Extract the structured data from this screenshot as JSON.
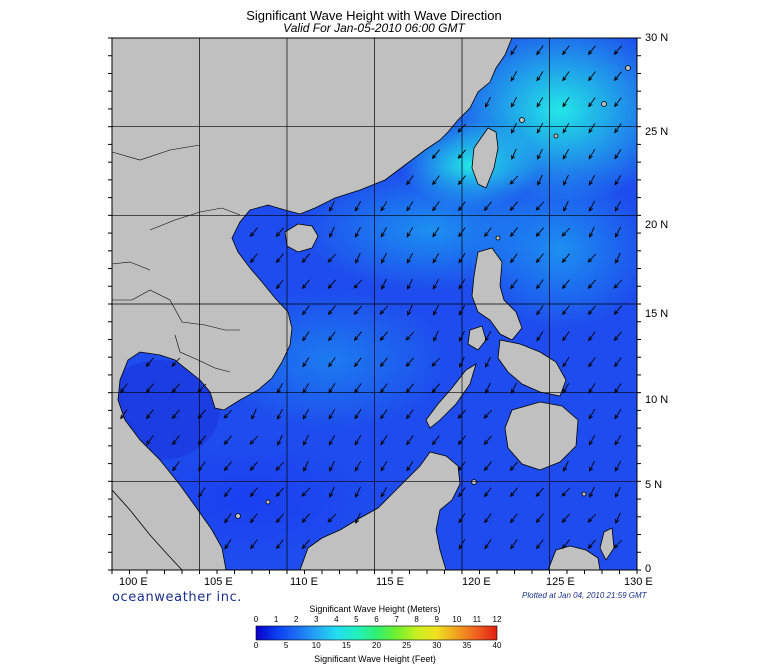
{
  "header": {
    "title": "Significant Wave Height with Wave Direction",
    "subtitle": "Valid For Jan-05-2010 06:00 GMT"
  },
  "map": {
    "lon_range": [
      100,
      130
    ],
    "lat_range": [
      0,
      30
    ],
    "lon_labels": [
      "100 E",
      "105 E",
      "110 E",
      "115 E",
      "120 E",
      "125 E",
      "130 E"
    ],
    "lat_labels": [
      "30 N",
      "25 N",
      "20 N",
      "15 N",
      "10 N",
      "5 N",
      "0"
    ],
    "land_color": "#c0c0c0",
    "ocean_base_color": "#1f50f0",
    "prevailing_wave_direction": "from northeast toward southwest",
    "max_height_area": "Taiwan Strait / Luzon Strait (~4-5 m)"
  },
  "footer": {
    "logo": "oceanweather inc.",
    "plotted": "Plotted at Jan 04, 2010 21:59 GMT"
  },
  "colorbar": {
    "meters_title": "Significant Wave Height (Meters)",
    "feet_title": "Significant Wave Height (Feet)",
    "meters_ticks": [
      "0",
      "1",
      "2",
      "3",
      "4",
      "5",
      "6",
      "7",
      "8",
      "9",
      "10",
      "11",
      "12"
    ],
    "feet_ticks": [
      "0",
      "5",
      "10",
      "15",
      "20",
      "25",
      "30",
      "35",
      "40"
    ],
    "colors": [
      "#0a00c8",
      "#0a3cf0",
      "#1c6cf4",
      "#24a4f4",
      "#22dcf0",
      "#22f0c0",
      "#30f070",
      "#70f030",
      "#c8f020",
      "#f0e020",
      "#f0a020",
      "#f06020",
      "#e02010"
    ]
  }
}
